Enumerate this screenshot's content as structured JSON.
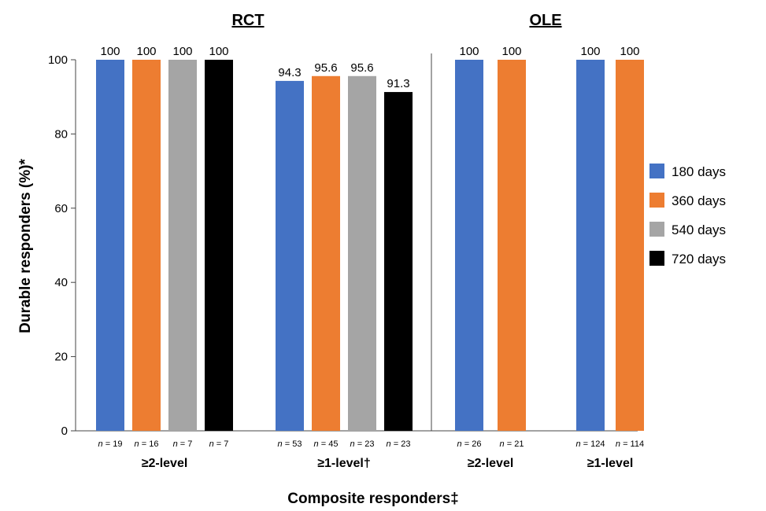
{
  "chart_data": {
    "type": "bar",
    "ylabel": "Durable responders (%)*",
    "xlabel": "Composite responders‡",
    "ylim": [
      0,
      100
    ],
    "yticks": [
      0,
      20,
      40,
      60,
      80,
      100
    ],
    "legend_position": "right",
    "series_meta": [
      {
        "name": "180 days",
        "color": "#4472C4"
      },
      {
        "name": "360 days",
        "color": "#ED7D31"
      },
      {
        "name": "540 days",
        "color": "#A5A5A5"
      },
      {
        "name": "720 days",
        "color": "#000000"
      }
    ],
    "sections": [
      {
        "title": "RCT",
        "groups": [
          {
            "label": "≥2-level",
            "bars": [
              {
                "series": "180 days",
                "value": 100,
                "n": "19"
              },
              {
                "series": "360 days",
                "value": 100,
                "n": "16"
              },
              {
                "series": "540 days",
                "value": 100,
                "n": "7"
              },
              {
                "series": "720 days",
                "value": 100,
                "n": "7"
              }
            ]
          },
          {
            "label": "≥1-level†",
            "bars": [
              {
                "series": "180 days",
                "value": 94.3,
                "n": "53"
              },
              {
                "series": "360 days",
                "value": 95.6,
                "n": "45"
              },
              {
                "series": "540 days",
                "value": 95.6,
                "n": "23"
              },
              {
                "series": "720 days",
                "value": 91.3,
                "n": "23"
              }
            ]
          }
        ]
      },
      {
        "title": "OLE",
        "groups": [
          {
            "label": "≥2-level",
            "bars": [
              {
                "series": "180 days",
                "value": 100,
                "n": "26"
              },
              {
                "series": "360 days",
                "value": 100,
                "n": "21"
              }
            ]
          },
          {
            "label": "≥1-level",
            "bars": [
              {
                "series": "180 days",
                "value": 100,
                "n": "124"
              },
              {
                "series": "360 days",
                "value": 100,
                "n": "114"
              }
            ]
          }
        ]
      }
    ]
  }
}
